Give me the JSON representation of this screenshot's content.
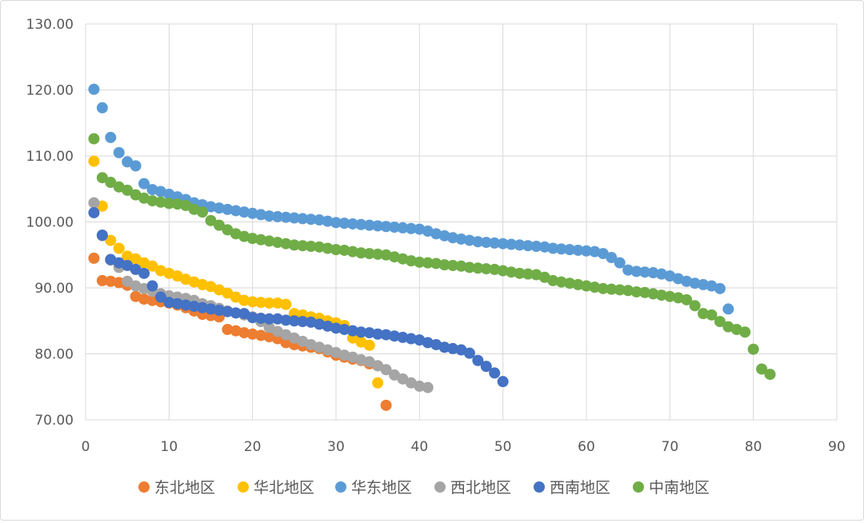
{
  "chart_data": {
    "type": "scatter",
    "title": "",
    "xlabel": "",
    "ylabel": "",
    "xlim": [
      0,
      90
    ],
    "ylim": [
      70,
      130
    ],
    "x_ticks": [
      "0",
      "10",
      "20",
      "30",
      "40",
      "50",
      "60",
      "70",
      "80",
      "90"
    ],
    "y_ticks": [
      "70.00",
      "80.00",
      "90.00",
      "100.00",
      "110.00",
      "120.00",
      "130.00"
    ],
    "grid": "vertical and horizontal major gridlines",
    "legend_position": "bottom",
    "series": [
      {
        "name": "东北地区",
        "color": "#ED7D31",
        "y": [
          94.5,
          91.1,
          91.0,
          90.8,
          90.4,
          88.7,
          88.3,
          88.1,
          87.9,
          87.7,
          87.4,
          87.0,
          86.5,
          86.0,
          85.8,
          85.6,
          83.7,
          83.5,
          83.2,
          83.0,
          82.8,
          82.6,
          82.3,
          81.7,
          81.4,
          81.2,
          81.0,
          80.8,
          80.3,
          79.8,
          79.5,
          79.2,
          79.0,
          78.5,
          78.2,
          72.2
        ]
      },
      {
        "name": "华北地区",
        "color": "#FFC000",
        "y": [
          109.2,
          102.4,
          97.2,
          96.0,
          94.8,
          94.4,
          93.8,
          93.3,
          92.6,
          92.2,
          91.8,
          91.3,
          90.9,
          90.5,
          90.2,
          89.7,
          89.2,
          88.6,
          88.1,
          87.9,
          87.8,
          87.7,
          87.7,
          87.5,
          86.1,
          85.9,
          85.6,
          85.4,
          85.0,
          84.7,
          84.3,
          82.4,
          81.8,
          81.3,
          75.6
        ]
      },
      {
        "name": "华东地区",
        "color": "#5B9BD5",
        "y": [
          120.1,
          117.3,
          112.8,
          110.5,
          109.1,
          108.5,
          105.8,
          104.9,
          104.6,
          104.2,
          103.8,
          103.4,
          102.9,
          102.6,
          102.3,
          102.1,
          101.9,
          101.7,
          101.5,
          101.3,
          101.1,
          100.9,
          100.8,
          100.7,
          100.6,
          100.5,
          100.4,
          100.3,
          100.1,
          99.9,
          99.8,
          99.7,
          99.6,
          99.5,
          99.4,
          99.3,
          99.2,
          99.1,
          99.0,
          98.9,
          98.6,
          98.2,
          97.9,
          97.6,
          97.4,
          97.2,
          97.0,
          96.9,
          96.8,
          96.7,
          96.6,
          96.5,
          96.4,
          96.3,
          96.2,
          96.0,
          95.9,
          95.8,
          95.7,
          95.6,
          95.5,
          95.2,
          94.6,
          93.8,
          92.7,
          92.5,
          92.4,
          92.3,
          92.1,
          91.8,
          91.4,
          91.0,
          90.7,
          90.5,
          90.3,
          89.9,
          86.8
        ]
      },
      {
        "name": "西北地区",
        "color": "#A5A5A5",
        "y": [
          102.9,
          97.9,
          94.2,
          93.1,
          91.0,
          90.3,
          89.9,
          89.5,
          89.1,
          88.8,
          88.6,
          88.4,
          88.1,
          87.6,
          87.3,
          86.9,
          86.5,
          86.2,
          85.9,
          85.6,
          84.9,
          84.0,
          83.4,
          82.9,
          82.4,
          81.9,
          81.4,
          81.0,
          80.6,
          80.2,
          79.8,
          79.5,
          79.1,
          78.8,
          78.2,
          77.6,
          76.8,
          76.2,
          75.6,
          75.1,
          74.9
        ]
      },
      {
        "name": "西南地区",
        "color": "#4472C4",
        "y": [
          101.4,
          98.0,
          94.3,
          93.8,
          93.4,
          92.8,
          92.2,
          90.3,
          88.6,
          87.8,
          87.6,
          87.4,
          87.2,
          87.0,
          86.8,
          86.6,
          86.4,
          86.2,
          86.1,
          85.5,
          85.4,
          85.3,
          85.3,
          85.1,
          85.0,
          84.9,
          84.8,
          84.5,
          84.2,
          83.9,
          83.7,
          83.5,
          83.3,
          83.2,
          83.0,
          82.9,
          82.7,
          82.5,
          82.3,
          82.1,
          81.7,
          81.4,
          81.0,
          80.8,
          80.6,
          80.1,
          79.0,
          78.1,
          77.1,
          75.8
        ]
      },
      {
        "name": "中南地区",
        "color": "#70AD47",
        "y": [
          112.6,
          106.7,
          106.0,
          105.3,
          104.8,
          104.1,
          103.6,
          103.2,
          103.0,
          102.8,
          102.7,
          102.5,
          101.9,
          101.5,
          100.2,
          99.5,
          98.8,
          98.2,
          97.8,
          97.5,
          97.3,
          97.1,
          96.9,
          96.7,
          96.5,
          96.4,
          96.3,
          96.2,
          96.0,
          95.8,
          95.7,
          95.5,
          95.3,
          95.2,
          95.1,
          95.0,
          94.7,
          94.4,
          94.1,
          93.9,
          93.8,
          93.7,
          93.5,
          93.4,
          93.3,
          93.1,
          93.0,
          92.9,
          92.8,
          92.6,
          92.4,
          92.2,
          92.1,
          92.0,
          91.6,
          91.1,
          90.9,
          90.7,
          90.5,
          90.3,
          90.1,
          89.9,
          89.8,
          89.7,
          89.6,
          89.4,
          89.3,
          89.1,
          88.9,
          88.7,
          88.5,
          88.2,
          87.3,
          86.1,
          85.9,
          84.9,
          84.1,
          83.7,
          83.3,
          80.7,
          77.7,
          76.9
        ]
      }
    ]
  }
}
